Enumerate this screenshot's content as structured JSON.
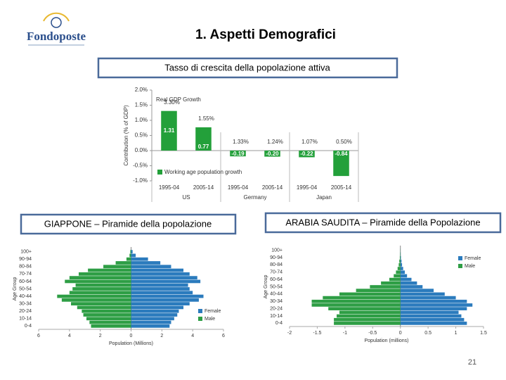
{
  "logo": "Fondoposte",
  "title": "1. Aspetti Demografici",
  "page_number": "21",
  "chart_data": [
    {
      "type": "bar",
      "title": "Tasso di crescita della popolazione attiva",
      "ylabel": "Contribution (% of GDP)",
      "categories": [
        "1995-04",
        "2005-14",
        "1995-04",
        "2005-14",
        "1995-04",
        "2005-14"
      ],
      "groups": [
        "US",
        "Germany",
        "Japan"
      ],
      "ylim": [
        -1.0,
        2.0
      ],
      "yticks": [
        {
          "value": 2.0,
          "label": "2.0%"
        },
        {
          "value": 1.5,
          "label": "1.5%"
        },
        {
          "value": 1.0,
          "label": "1.0%"
        },
        {
          "value": 0.5,
          "label": "0.5%"
        },
        {
          "value": 0.0,
          "label": "0.0%"
        },
        {
          "value": -0.5,
          "label": "-0.5%"
        },
        {
          "value": -1.0,
          "label": "-1.0%"
        }
      ],
      "grid": false,
      "series": [
        {
          "name": "Real GDP Growth",
          "mark": "text",
          "color": "#333333",
          "values": [
            3.3,
            1.55,
            1.33,
            1.24,
            1.07,
            0.5
          ],
          "value_labels": [
            "3.30%",
            "1.55%",
            "1.33%",
            "1.24%",
            "1.07%",
            "0.50%"
          ]
        },
        {
          "name": "Working age population growth",
          "mark": "bar",
          "color": "#23a03a",
          "values": [
            1.31,
            0.77,
            -0.19,
            -0.2,
            -0.22,
            -0.84
          ],
          "value_labels": [
            "1.31",
            "0.77",
            "-0.19",
            "-0.20",
            "-0.22",
            "-0.84"
          ]
        }
      ]
    },
    {
      "type": "pyramid",
      "title": "GIAPPONE – Piramide della popolazione",
      "xlabel": "Population (Millions)",
      "ylabel": "Age Group",
      "categories": [
        "0-4",
        null,
        "10-14",
        null,
        "20-24",
        null,
        "30-34",
        null,
        "40-44",
        null,
        "50-54",
        null,
        "60-64",
        null,
        "70-74",
        null,
        "80-84",
        null,
        "90-94",
        null,
        "100+"
      ],
      "xlim": [
        -6,
        6
      ],
      "xticks": [
        {
          "value": -6,
          "label": "6"
        },
        {
          "value": -4,
          "label": "4"
        },
        {
          "value": -2,
          "label": "2"
        },
        0,
        2,
        4,
        6
      ],
      "legend": "lower right",
      "series": [
        {
          "name": "Female",
          "color": "#2b7bbd",
          "values": [
            2.5,
            2.6,
            2.8,
            3.0,
            3.1,
            3.4,
            3.8,
            4.4,
            4.7,
            4.0,
            3.8,
            3.7,
            4.5,
            4.3,
            3.8,
            3.4,
            2.6,
            1.9,
            1.1,
            0.3,
            0.1
          ]
        },
        {
          "name": "Male",
          "color": "#2e9e45",
          "values": [
            -2.6,
            -2.7,
            -2.9,
            -3.1,
            -3.2,
            -3.5,
            -3.9,
            -4.5,
            -4.8,
            -4.0,
            -3.8,
            -3.6,
            -4.3,
            -4.0,
            -3.4,
            -2.8,
            -1.8,
            -1.0,
            -0.3,
            -0.1,
            -0.05
          ]
        }
      ]
    },
    {
      "type": "pyramid",
      "title": "ARABIA SAUDITA – Piramide della Popolazione",
      "xlabel": "Population (millions)",
      "ylabel": "Age Group",
      "categories": [
        "0-4",
        null,
        "10-14",
        null,
        "20-24",
        null,
        "30-34",
        null,
        "40-44",
        null,
        "50-54",
        null,
        "60-64",
        null,
        "70-74",
        null,
        "80-84",
        null,
        "90-94",
        null,
        "100+"
      ],
      "xlim": [
        -2,
        1.5
      ],
      "xticks": [
        -2,
        -1.5,
        -1,
        -0.5,
        0,
        0.5,
        1,
        1.5
      ],
      "legend": "upper right",
      "series": [
        {
          "name": "Female",
          "color": "#2b7bbd",
          "values": [
            1.2,
            1.15,
            1.1,
            1.05,
            1.2,
            1.3,
            1.2,
            1.0,
            0.8,
            0.6,
            0.4,
            0.3,
            0.2,
            0.12,
            0.08,
            0.05,
            0.03,
            0.02,
            0.01,
            0.005,
            0.002
          ]
        },
        {
          "name": "Male",
          "color": "#2e9e45",
          "values": [
            -1.2,
            -1.2,
            -1.15,
            -1.1,
            -1.3,
            -1.6,
            -1.6,
            -1.4,
            -1.1,
            -0.8,
            -0.55,
            -0.35,
            -0.2,
            -0.12,
            -0.08,
            -0.05,
            -0.03,
            -0.02,
            -0.01,
            -0.005,
            -0.002
          ]
        }
      ]
    }
  ]
}
